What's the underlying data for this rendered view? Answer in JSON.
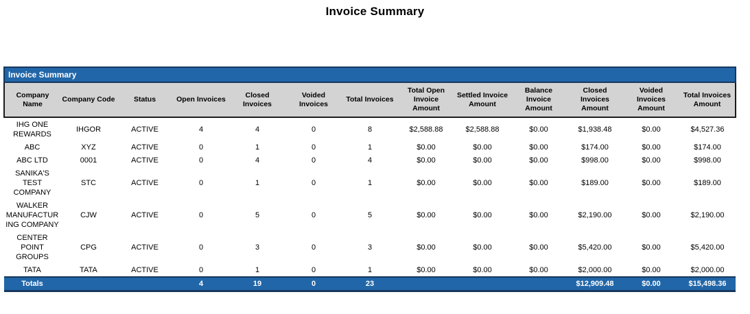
{
  "page_title": "Invoice Summary",
  "colors": {
    "accent_blue": "#2166A8",
    "accent_dark_border": "#17375E",
    "header_gray": "#D3D3D3",
    "body_text": "#000000",
    "band_text": "#FFFFFF"
  },
  "table": {
    "band_title": "Invoice Summary",
    "columns": [
      "Company Name",
      "Company Code",
      "Status",
      "Open Invoices",
      "Closed Invoices",
      "Voided Invoices",
      "Total Invoices",
      "Total Open Invoice Amount",
      "Settled Invoice Amount",
      "Balance Invoice Amount",
      "Closed Invoices Amount",
      "Voided Invoices Amount",
      "Total Invoices Amount"
    ],
    "rows": [
      [
        "IHG ONE REWARDS",
        "IHGOR",
        "ACTIVE",
        "4",
        "4",
        "0",
        "8",
        "$2,588.88",
        "$2,588.88",
        "$0.00",
        "$1,938.48",
        "$0.00",
        "$4,527.36"
      ],
      [
        "ABC",
        "XYZ",
        "ACTIVE",
        "0",
        "1",
        "0",
        "1",
        "$0.00",
        "$0.00",
        "$0.00",
        "$174.00",
        "$0.00",
        "$174.00"
      ],
      [
        "ABC LTD",
        "0001",
        "ACTIVE",
        "0",
        "4",
        "0",
        "4",
        "$0.00",
        "$0.00",
        "$0.00",
        "$998.00",
        "$0.00",
        "$998.00"
      ],
      [
        "SANIKA'S TEST COMPANY",
        "STC",
        "ACTIVE",
        "0",
        "1",
        "0",
        "1",
        "$0.00",
        "$0.00",
        "$0.00",
        "$189.00",
        "$0.00",
        "$189.00"
      ],
      [
        "WALKER MANUFACTURING COMPANY",
        "CJW",
        "ACTIVE",
        "0",
        "5",
        "0",
        "5",
        "$0.00",
        "$0.00",
        "$0.00",
        "$2,190.00",
        "$0.00",
        "$2,190.00"
      ],
      [
        "CENTER POINT GROUPS",
        "CPG",
        "ACTIVE",
        "0",
        "3",
        "0",
        "3",
        "$0.00",
        "$0.00",
        "$0.00",
        "$5,420.00",
        "$0.00",
        "$5,420.00"
      ],
      [
        "TATA",
        "TATA",
        "ACTIVE",
        "0",
        "1",
        "0",
        "1",
        "$0.00",
        "$0.00",
        "$0.00",
        "$2,000.00",
        "$0.00",
        "$2,000.00"
      ]
    ],
    "totals_row": [
      "Totals",
      "",
      "",
      "4",
      "19",
      "0",
      "23",
      "",
      "",
      "",
      "$12,909.48",
      "$0.00",
      "$15,498.36"
    ]
  }
}
